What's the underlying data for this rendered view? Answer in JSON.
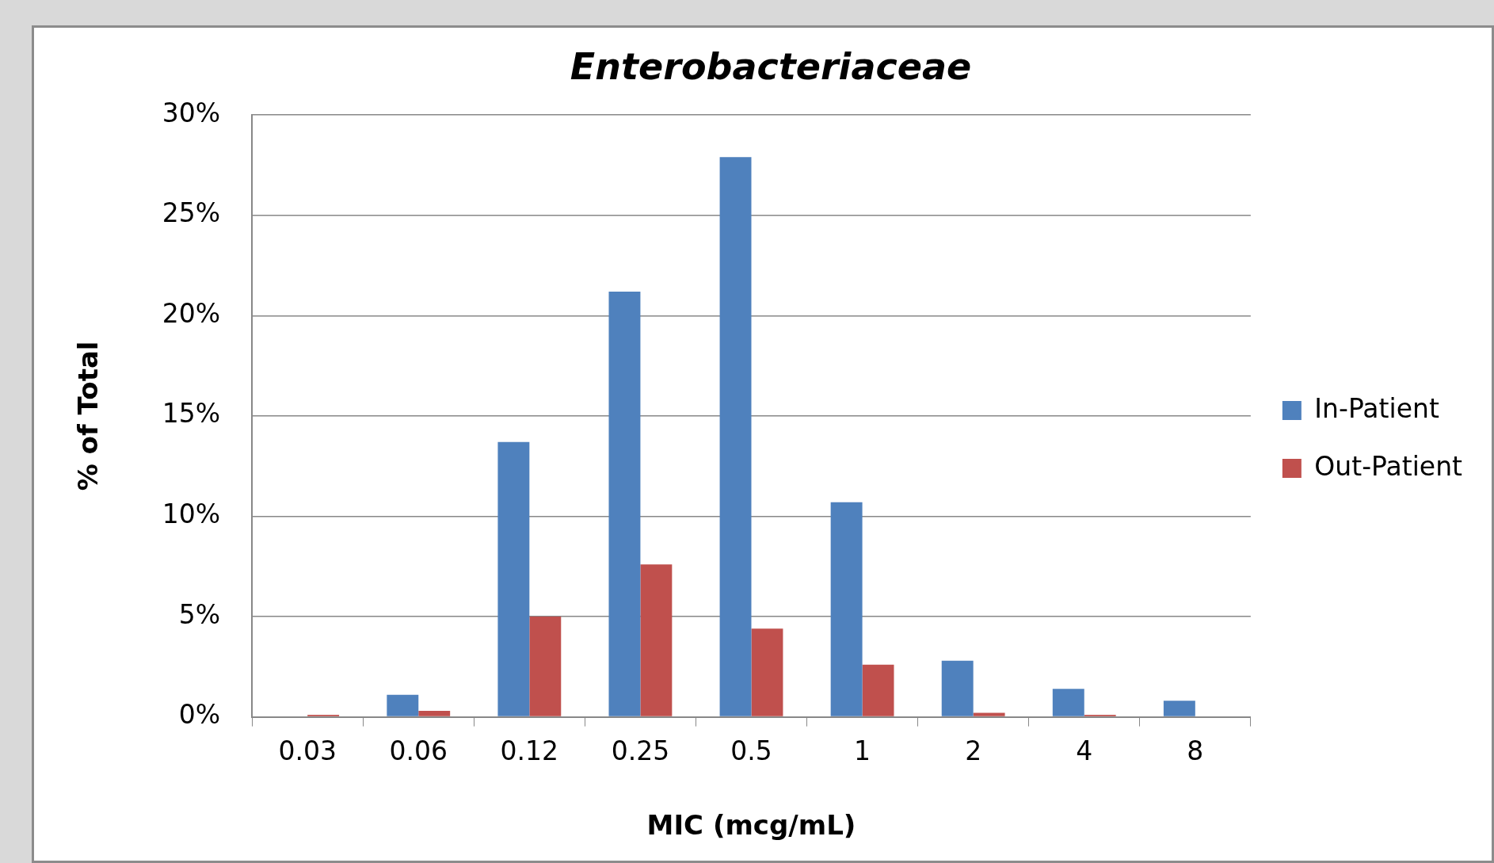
{
  "chart_data": {
    "type": "bar",
    "title": "Enterobacteriaceae",
    "xlabel": "MIC (mcg/mL)",
    "ylabel": "% of Total",
    "categories": [
      "0.03",
      "0.06",
      "0.12",
      "0.25",
      "0.5",
      "1",
      "2",
      "4",
      "8"
    ],
    "series": [
      {
        "name": "In-Patient",
        "color": "#4f81bd",
        "values": [
          0,
          1.1,
          13.7,
          21.2,
          27.9,
          10.7,
          2.8,
          1.4,
          0.8
        ]
      },
      {
        "name": "Out-Patient",
        "color": "#c0504d",
        "values": [
          0.1,
          0.3,
          5.0,
          7.6,
          4.4,
          2.6,
          0.2,
          0.1,
          0
        ]
      }
    ],
    "ylim": [
      0,
      30
    ],
    "yticks": [
      {
        "value": 0,
        "label": "0%"
      },
      {
        "value": 5,
        "label": "5%"
      },
      {
        "value": 10,
        "label": "10%"
      },
      {
        "value": 15,
        "label": "15%"
      },
      {
        "value": 20,
        "label": "20%"
      },
      {
        "value": 25,
        "label": "25%"
      },
      {
        "value": 30,
        "label": "30%"
      }
    ],
    "grid": "y",
    "legend": "right"
  }
}
